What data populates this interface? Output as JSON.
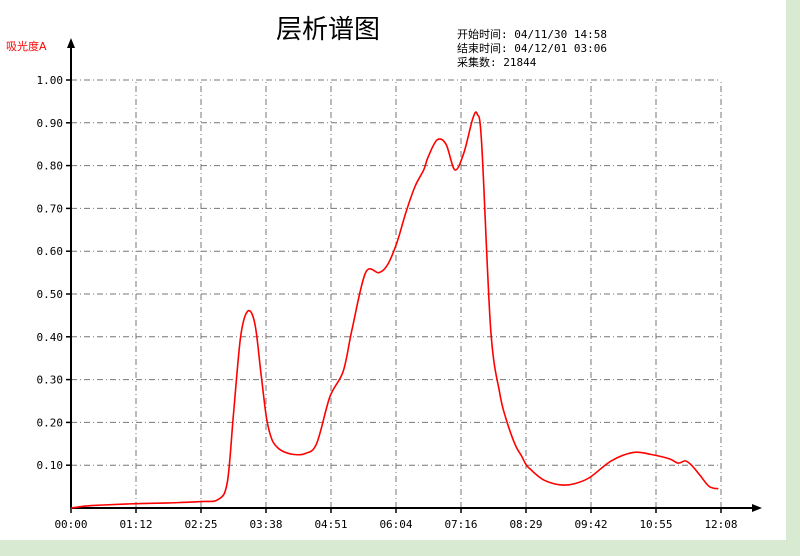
{
  "chart_data": {
    "type": "line",
    "title": "层析谱图",
    "ylabel": "吸光度A",
    "xlabel": "",
    "info": [
      "开始时间: 04/11/30 14:58",
      "结束时间: 04/12/01 03:06",
      "采集数: 21844"
    ],
    "x_ticks": [
      "00:00",
      "01:12",
      "02:25",
      "03:38",
      "04:51",
      "06:04",
      "07:16",
      "08:29",
      "09:42",
      "10:55",
      "12:08"
    ],
    "y_ticks": [
      "0.10",
      "0.20",
      "0.30",
      "0.40",
      "0.50",
      "0.60",
      "0.70",
      "0.80",
      "0.90",
      "1.00"
    ],
    "xlim_minutes": [
      0,
      728
    ],
    "ylim": [
      0,
      1.0
    ],
    "grid": true,
    "series": [
      {
        "color": "#ff0000",
        "x_minutes": [
          0,
          18,
          36,
          72,
          110,
          145,
          165,
          175,
          182,
          190,
          198,
          206,
          213,
          219,
          225,
          232,
          240,
          250,
          262,
          275,
          290,
          305,
          315,
          330,
          345,
          355,
          365,
          375,
          385,
          395,
          400,
          410,
          420,
          430,
          440,
          450,
          455,
          460,
          470,
          480,
          487,
          497,
          505,
          510,
          515,
          520,
          530,
          545,
          560,
          580,
          605,
          630,
          650,
          670,
          680,
          688,
          695,
          705,
          715,
          725
        ],
        "y": [
          0.0,
          0.005,
          0.007,
          0.01,
          0.012,
          0.015,
          0.02,
          0.06,
          0.22,
          0.4,
          0.46,
          0.43,
          0.31,
          0.21,
          0.16,
          0.14,
          0.13,
          0.125,
          0.127,
          0.15,
          0.26,
          0.32,
          0.42,
          0.55,
          0.55,
          0.57,
          0.62,
          0.69,
          0.75,
          0.79,
          0.82,
          0.86,
          0.85,
          0.79,
          0.83,
          0.91,
          0.92,
          0.85,
          0.42,
          0.27,
          0.21,
          0.15,
          0.12,
          0.1,
          0.09,
          0.08,
          0.065,
          0.055,
          0.055,
          0.07,
          0.11,
          0.13,
          0.125,
          0.115,
          0.105,
          0.11,
          0.1,
          0.075,
          0.05,
          0.045
        ]
      }
    ]
  }
}
